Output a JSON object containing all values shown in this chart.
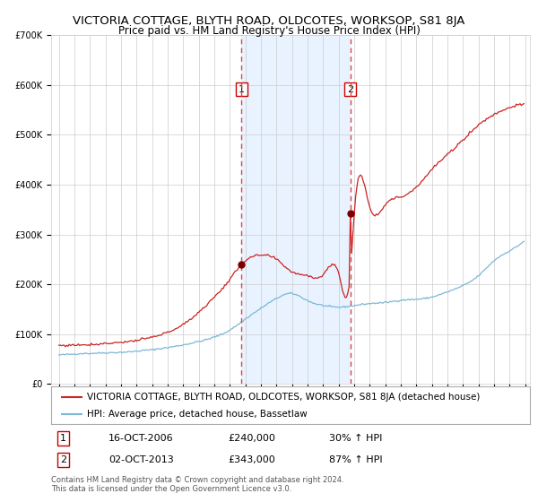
{
  "title": "VICTORIA COTTAGE, BLYTH ROAD, OLDCOTES, WORKSOP, S81 8JA",
  "subtitle": "Price paid vs. HM Land Registry's House Price Index (HPI)",
  "legend_line1": "VICTORIA COTTAGE, BLYTH ROAD, OLDCOTES, WORKSOP, S81 8JA (detached house)",
  "legend_line2": "HPI: Average price, detached house, Bassetlaw",
  "transaction1_date": "16-OCT-2006",
  "transaction1_price": 240000,
  "transaction1_pct": "30% ↑ HPI",
  "transaction2_date": "02-OCT-2013",
  "transaction2_price": 343000,
  "transaction2_pct": "87% ↑ HPI",
  "footnote": "Contains HM Land Registry data © Crown copyright and database right 2024.\nThis data is licensed under the Open Government Licence v3.0.",
  "hpi_color": "#7bb8d4",
  "price_color": "#cc2222",
  "dot_color": "#7a0000",
  "shade_color": "#ddeeff",
  "vline_color": "#dd4444",
  "background_color": "#ffffff",
  "ylim": [
    0,
    700000
  ],
  "yticks": [
    0,
    100000,
    200000,
    300000,
    400000,
    500000,
    600000,
    700000
  ],
  "title_fontsize": 9.5,
  "subtitle_fontsize": 8.5,
  "tick_fontsize": 7,
  "legend_fontsize": 7.5,
  "table_fontsize": 8,
  "footnote_fontsize": 6
}
